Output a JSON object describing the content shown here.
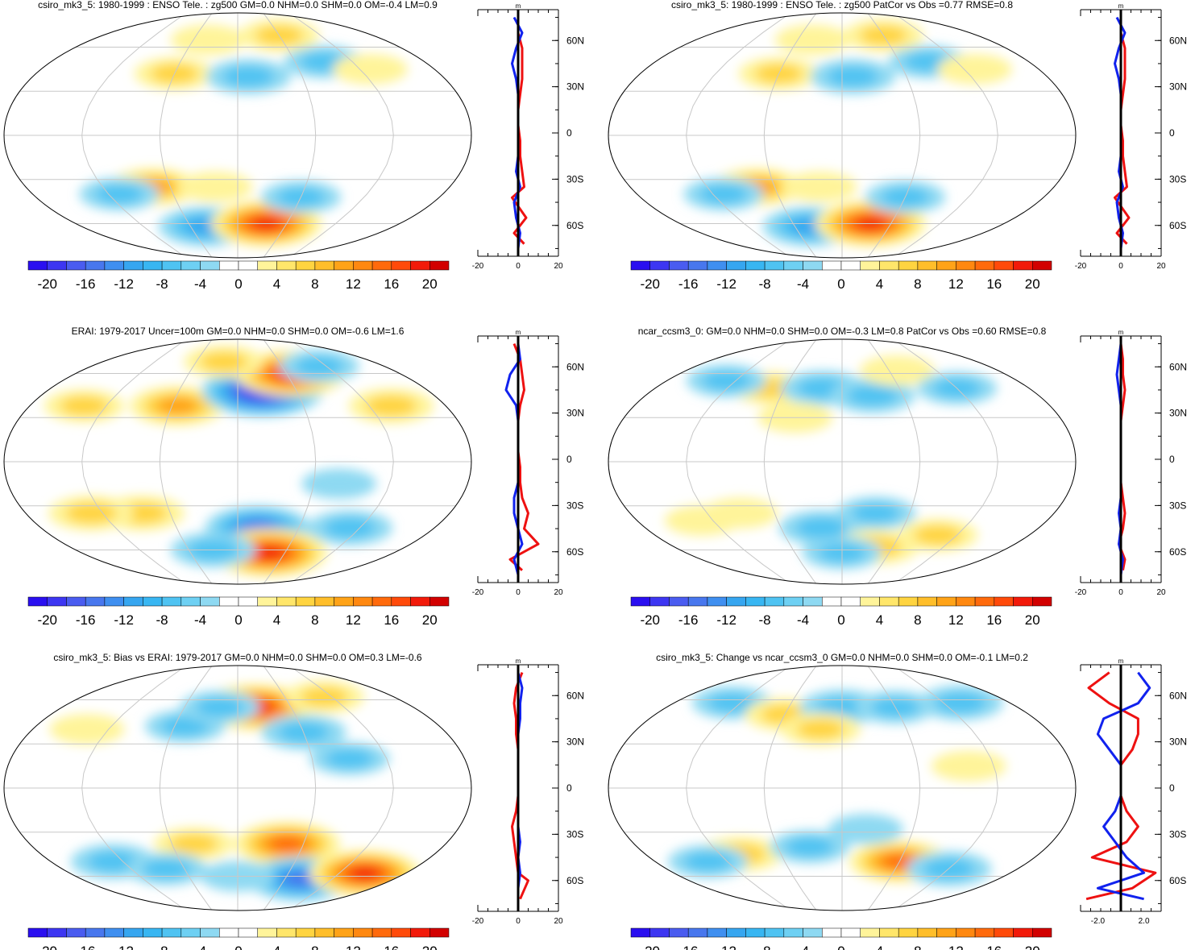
{
  "colorbar": {
    "levels": [
      -22,
      -20,
      -18,
      -16,
      -14,
      -12,
      -10,
      -8,
      -6,
      -4,
      -2,
      2,
      4,
      6,
      8,
      10,
      12,
      14,
      16,
      18,
      20,
      22
    ],
    "tick_labels": [
      "-20",
      "-16",
      "-12",
      "-8",
      "-4",
      "0",
      "4",
      "8",
      "12",
      "16",
      "20"
    ],
    "colors": [
      "#2a0ff0",
      "#3d36f2",
      "#4a5cf0",
      "#4877ee",
      "#3f8ff0",
      "#36a6f0",
      "#38b6f2",
      "#4fc3f2",
      "#6ed0f3",
      "#8ed9f2",
      "#ffffff",
      "#ffffff",
      "#fff49a",
      "#ffe66a",
      "#ffd440",
      "#ffbe2a",
      "#ffa318",
      "#ff8810",
      "#ff6a0c",
      "#ff4a0a",
      "#f21a0a",
      "#d20000"
    ]
  },
  "chart_data": [
    {
      "type": "map+zonal-profile",
      "title": "csiro_mk3_5: 1980-1999 : ENSO Tele. : zg500 GM=0.0 NHM=0.0 SHM=0.0 OM=-0.4 LM=0.9",
      "units": "m",
      "profile_xlim": [
        -20,
        20
      ],
      "profile_xticks": [
        "-20",
        "0",
        "20"
      ],
      "lat_ticks": [
        "60N",
        "30N",
        "0",
        "30S",
        "60S"
      ],
      "anomalies": [
        {
          "lon": -60,
          "lat": 42,
          "value": 6
        },
        {
          "lon": 10,
          "lat": 40,
          "value": -8
        },
        {
          "lon": 90,
          "lat": 50,
          "value": -6
        },
        {
          "lon": -75,
          "lat": -35,
          "value": 10
        },
        {
          "lon": -40,
          "lat": -62,
          "value": -12
        },
        {
          "lon": 35,
          "lat": -60,
          "value": 18
        },
        {
          "lon": 60,
          "lat": -42,
          "value": -6
        },
        {
          "lon": -110,
          "lat": -40,
          "value": -6
        },
        {
          "lon": -20,
          "lat": -35,
          "value": 4
        },
        {
          "lon": -40,
          "lat": 65,
          "value": 4
        },
        {
          "lon": 60,
          "lat": 68,
          "value": 6
        },
        {
          "lon": 130,
          "lat": 45,
          "value": 4
        }
      ],
      "zonal_mean_model": [
        [
          75,
          -2
        ],
        [
          65,
          2
        ],
        [
          55,
          -1
        ],
        [
          45,
          -3
        ],
        [
          35,
          -1
        ],
        [
          25,
          0
        ],
        [
          15,
          0
        ],
        [
          5,
          0
        ],
        [
          -5,
          0
        ],
        [
          -15,
          0
        ],
        [
          -25,
          -1
        ],
        [
          -35,
          1
        ],
        [
          -45,
          -2
        ],
        [
          -55,
          -1
        ],
        [
          -65,
          1
        ],
        [
          -75,
          0
        ]
      ],
      "zonal_mean_obs": [
        [
          75,
          0
        ],
        [
          65,
          0
        ],
        [
          55,
          2
        ],
        [
          45,
          2
        ],
        [
          35,
          2
        ],
        [
          25,
          1
        ],
        [
          15,
          0
        ],
        [
          5,
          0
        ],
        [
          -5,
          1
        ],
        [
          -15,
          1
        ],
        [
          -25,
          2
        ],
        [
          -35,
          3
        ],
        [
          -42,
          -3
        ],
        [
          -55,
          4
        ],
        [
          -65,
          -2
        ],
        [
          -72,
          3
        ]
      ]
    },
    {
      "type": "map+zonal-profile",
      "title": "csiro_mk3_5: 1980-1999 : ENSO Tele. : zg500 PatCor vs Obs =0.77 RMSE=0.8",
      "units": "m",
      "profile_xlim": [
        -20,
        20
      ],
      "profile_xticks": [
        "-20",
        "0",
        "20"
      ],
      "lat_ticks": [
        "60N",
        "30N",
        "0",
        "30S",
        "60S"
      ],
      "anomalies": [
        {
          "lon": -60,
          "lat": 42,
          "value": 6
        },
        {
          "lon": 10,
          "lat": 40,
          "value": -8
        },
        {
          "lon": 90,
          "lat": 50,
          "value": -6
        },
        {
          "lon": -75,
          "lat": -35,
          "value": 10
        },
        {
          "lon": -40,
          "lat": -62,
          "value": -12
        },
        {
          "lon": 35,
          "lat": -60,
          "value": 18
        },
        {
          "lon": 60,
          "lat": -42,
          "value": -6
        },
        {
          "lon": -110,
          "lat": -40,
          "value": -6
        },
        {
          "lon": -20,
          "lat": -35,
          "value": 4
        },
        {
          "lon": -40,
          "lat": 65,
          "value": 4
        },
        {
          "lon": 60,
          "lat": 68,
          "value": 6
        },
        {
          "lon": 130,
          "lat": 45,
          "value": 4
        }
      ],
      "zonal_mean_model": [
        [
          75,
          -2
        ],
        [
          65,
          2
        ],
        [
          55,
          -1
        ],
        [
          45,
          -3
        ],
        [
          35,
          -1
        ],
        [
          25,
          0
        ],
        [
          15,
          0
        ],
        [
          5,
          0
        ],
        [
          -5,
          0
        ],
        [
          -15,
          0
        ],
        [
          -25,
          -1
        ],
        [
          -35,
          1
        ],
        [
          -45,
          -2
        ],
        [
          -55,
          -1
        ],
        [
          -65,
          1
        ],
        [
          -75,
          0
        ]
      ],
      "zonal_mean_obs": [
        [
          75,
          0
        ],
        [
          65,
          0
        ],
        [
          55,
          2
        ],
        [
          45,
          2
        ],
        [
          35,
          2
        ],
        [
          25,
          1
        ],
        [
          15,
          0
        ],
        [
          5,
          0
        ],
        [
          -5,
          1
        ],
        [
          -15,
          1
        ],
        [
          -25,
          2
        ],
        [
          -35,
          3
        ],
        [
          -42,
          -3
        ],
        [
          -55,
          4
        ],
        [
          -65,
          -2
        ],
        [
          -72,
          3
        ]
      ]
    },
    {
      "type": "map+zonal-profile",
      "title": "ERAI: 1979-2017 Uncer=100m GM=0.0 NHM=0.0 SHM=0.0 OM=-0.6 LM=1.6",
      "units": "m",
      "profile_xlim": [
        -20,
        20
      ],
      "profile_xticks": [
        "-20",
        "0",
        "20"
      ],
      "lat_ticks": [
        "60N",
        "30N",
        "0",
        "30S",
        "60S"
      ],
      "anomalies": [
        {
          "lon": -55,
          "lat": 38,
          "value": 12
        },
        {
          "lon": 25,
          "lat": 48,
          "value": -22
        },
        {
          "lon": 65,
          "lat": 60,
          "value": 18
        },
        {
          "lon": -140,
          "lat": 38,
          "value": 6
        },
        {
          "lon": -85,
          "lat": -35,
          "value": 8
        },
        {
          "lon": -130,
          "lat": -35,
          "value": 8
        },
        {
          "lon": 20,
          "lat": -45,
          "value": -16
        },
        {
          "lon": 40,
          "lat": -62,
          "value": 20
        },
        {
          "lon": -30,
          "lat": -60,
          "value": -8
        },
        {
          "lon": 110,
          "lat": -45,
          "value": -8
        },
        {
          "lon": 80,
          "lat": -15,
          "value": -4
        },
        {
          "lon": -20,
          "lat": 68,
          "value": 6
        },
        {
          "lon": 140,
          "lat": 38,
          "value": 8
        },
        {
          "lon": 110,
          "lat": 65,
          "value": -6
        }
      ],
      "zonal_mean_model": [
        [
          75,
          0
        ],
        [
          65,
          1
        ],
        [
          55,
          -4
        ],
        [
          45,
          -6
        ],
        [
          35,
          -1
        ],
        [
          25,
          0
        ],
        [
          15,
          0
        ],
        [
          5,
          0
        ],
        [
          -5,
          0
        ],
        [
          -15,
          0
        ],
        [
          -25,
          -2
        ],
        [
          -35,
          -2
        ],
        [
          -45,
          0
        ],
        [
          -55,
          2
        ],
        [
          -65,
          -2
        ],
        [
          -75,
          0
        ]
      ],
      "zonal_mean_obs": [
        [
          75,
          -2
        ],
        [
          65,
          1
        ],
        [
          55,
          2
        ],
        [
          45,
          3
        ],
        [
          35,
          1
        ],
        [
          25,
          0
        ],
        [
          15,
          0
        ],
        [
          5,
          0
        ],
        [
          -5,
          1
        ],
        [
          -15,
          1
        ],
        [
          -25,
          2
        ],
        [
          -35,
          5
        ],
        [
          -45,
          3
        ],
        [
          -55,
          10
        ],
        [
          -65,
          -4
        ],
        [
          -72,
          2
        ]
      ]
    },
    {
      "type": "map+zonal-profile",
      "title": "ncar_ccsm3_0: GM=0.0 NHM=0.0 SHM=0.0 OM=-0.3 LM=0.8 PatCor vs Obs =0.60 RMSE=0.8",
      "units": "m",
      "profile_xlim": [
        -20,
        20
      ],
      "profile_xticks": [
        "-20",
        "0",
        "20"
      ],
      "lat_ticks": [
        "60N",
        "30N",
        "0",
        "30S",
        "60S"
      ],
      "anomalies": [
        {
          "lon": -75,
          "lat": 50,
          "value": 6
        },
        {
          "lon": -20,
          "lat": 50,
          "value": -8
        },
        {
          "lon": 30,
          "lat": 45,
          "value": -8
        },
        {
          "lon": -130,
          "lat": 55,
          "value": -6
        },
        {
          "lon": 70,
          "lat": 62,
          "value": 4
        },
        {
          "lon": 120,
          "lat": 50,
          "value": -6
        },
        {
          "lon": -90,
          "lat": -35,
          "value": 4
        },
        {
          "lon": -130,
          "lat": -40,
          "value": 4
        },
        {
          "lon": -20,
          "lat": -45,
          "value": -8
        },
        {
          "lon": 30,
          "lat": -35,
          "value": -6
        },
        {
          "lon": 40,
          "lat": -58,
          "value": 8
        },
        {
          "lon": 0,
          "lat": -62,
          "value": -6
        },
        {
          "lon": 100,
          "lat": -50,
          "value": 6
        },
        {
          "lon": -40,
          "lat": 30,
          "value": 4
        }
      ],
      "zonal_mean_model": [
        [
          75,
          0
        ],
        [
          65,
          -1
        ],
        [
          55,
          -2
        ],
        [
          45,
          -1
        ],
        [
          35,
          0
        ],
        [
          25,
          0
        ],
        [
          15,
          0
        ],
        [
          5,
          0
        ],
        [
          -5,
          0
        ],
        [
          -15,
          0
        ],
        [
          -25,
          0
        ],
        [
          -35,
          -1
        ],
        [
          -45,
          0
        ],
        [
          -55,
          -1
        ],
        [
          -65,
          1
        ],
        [
          -75,
          0
        ]
      ],
      "zonal_mean_obs": [
        [
          75,
          0
        ],
        [
          65,
          1
        ],
        [
          55,
          1
        ],
        [
          45,
          2
        ],
        [
          35,
          1
        ],
        [
          25,
          0
        ],
        [
          15,
          0
        ],
        [
          5,
          0
        ],
        [
          -5,
          0
        ],
        [
          -15,
          0
        ],
        [
          -25,
          1
        ],
        [
          -35,
          2
        ],
        [
          -45,
          1
        ],
        [
          -55,
          -1
        ],
        [
          -65,
          2
        ],
        [
          -72,
          1
        ]
      ]
    },
    {
      "type": "map+zonal-profile",
      "title": "csiro_mk3_5: Bias vs ERAI: 1979-2017 GM=0.0 NHM=0.0 SHM=0.0 OM=0.3 LM=-0.6",
      "units": "m",
      "profile_xlim": [
        -20,
        20
      ],
      "profile_xticks": [
        "-20",
        "0",
        "20"
      ],
      "lat_ticks": [
        "60N",
        "30N",
        "0",
        "30S",
        "60S"
      ],
      "anomalies": [
        {
          "lon": 20,
          "lat": 55,
          "value": 18
        },
        {
          "lon": -50,
          "lat": 42,
          "value": -6
        },
        {
          "lon": 60,
          "lat": 38,
          "value": -8
        },
        {
          "lon": -20,
          "lat": 55,
          "value": -6
        },
        {
          "lon": 110,
          "lat": 62,
          "value": 6
        },
        {
          "lon": 45,
          "lat": -38,
          "value": 16
        },
        {
          "lon": -40,
          "lat": -38,
          "value": 6
        },
        {
          "lon": 80,
          "lat": -62,
          "value": -16
        },
        {
          "lon": 150,
          "lat": -58,
          "value": 18
        },
        {
          "lon": -130,
          "lat": -50,
          "value": -8
        },
        {
          "lon": -80,
          "lat": -55,
          "value": -6
        },
        {
          "lon": 0,
          "lat": -60,
          "value": -4
        },
        {
          "lon": 90,
          "lat": 20,
          "value": -6
        },
        {
          "lon": -140,
          "lat": 40,
          "value": 4
        }
      ],
      "zonal_mean_model": [
        [
          75,
          0
        ],
        [
          65,
          2
        ],
        [
          55,
          1
        ],
        [
          45,
          1
        ],
        [
          35,
          0
        ],
        [
          25,
          0
        ],
        [
          15,
          0
        ],
        [
          5,
          0
        ],
        [
          -5,
          0
        ],
        [
          -15,
          0
        ],
        [
          -25,
          0
        ],
        [
          -35,
          1
        ],
        [
          -45,
          0
        ],
        [
          -55,
          1
        ],
        [
          -65,
          0
        ],
        [
          -75,
          0
        ]
      ],
      "zonal_mean_obs": [
        [
          75,
          2
        ],
        [
          65,
          -1
        ],
        [
          55,
          -2
        ],
        [
          45,
          -1
        ],
        [
          35,
          -1
        ],
        [
          25,
          0
        ],
        [
          15,
          0
        ],
        [
          5,
          0
        ],
        [
          -5,
          0
        ],
        [
          -15,
          -1
        ],
        [
          -25,
          -3
        ],
        [
          -35,
          -2
        ],
        [
          -45,
          -1
        ],
        [
          -55,
          0
        ],
        [
          -60,
          5
        ],
        [
          -72,
          1
        ]
      ]
    },
    {
      "type": "map+zonal-profile",
      "title": "csiro_mk3_5: Change vs ncar_ccsm3_0 GM=0.0 NHM=0.0 SHM=0.0 OM=-0.1 LM=0.2",
      "units": "m",
      "profile_xlim": [
        -3.5,
        3.5
      ],
      "profile_xticks": [
        "-2.0",
        "2.0"
      ],
      "lat_ticks": [
        "60N",
        "30N",
        "0",
        "30S",
        "60S"
      ],
      "anomalies": [
        {
          "lon": -130,
          "lat": 58,
          "value": -6
        },
        {
          "lon": -60,
          "lat": 50,
          "value": 6
        },
        {
          "lon": 0,
          "lat": 55,
          "value": -8
        },
        {
          "lon": 60,
          "lat": 55,
          "value": -6
        },
        {
          "lon": 140,
          "lat": 58,
          "value": -8
        },
        {
          "lon": -20,
          "lat": 40,
          "value": 6
        },
        {
          "lon": -100,
          "lat": -45,
          "value": 8
        },
        {
          "lon": -140,
          "lat": -50,
          "value": -6
        },
        {
          "lon": -30,
          "lat": -40,
          "value": -6
        },
        {
          "lon": 60,
          "lat": -50,
          "value": 14
        },
        {
          "lon": 120,
          "lat": -55,
          "value": -8
        },
        {
          "lon": 20,
          "lat": -28,
          "value": -4
        },
        {
          "lon": 100,
          "lat": 15,
          "value": 4
        }
      ],
      "zonal_mean_model": [
        [
          75,
          1.5
        ],
        [
          65,
          2.5
        ],
        [
          55,
          1.5
        ],
        [
          45,
          -1.5
        ],
        [
          35,
          -2
        ],
        [
          25,
          -1
        ],
        [
          15,
          0
        ],
        [
          5,
          0
        ],
        [
          -5,
          0
        ],
        [
          -15,
          -0.5
        ],
        [
          -25,
          -1.5
        ],
        [
          -35,
          -0.5
        ],
        [
          -45,
          0.5
        ],
        [
          -55,
          2
        ],
        [
          -65,
          -2
        ],
        [
          -72,
          2
        ]
      ],
      "zonal_mean_obs": [
        [
          75,
          -1
        ],
        [
          65,
          -2.8
        ],
        [
          55,
          -1
        ],
        [
          45,
          1.5
        ],
        [
          35,
          1.5
        ],
        [
          25,
          1
        ],
        [
          15,
          0
        ],
        [
          5,
          0
        ],
        [
          -5,
          0
        ],
        [
          -15,
          0.5
        ],
        [
          -25,
          1.5
        ],
        [
          -35,
          0.5
        ],
        [
          -45,
          -2.5
        ],
        [
          -55,
          3
        ],
        [
          -65,
          1
        ],
        [
          -72,
          -3
        ]
      ]
    }
  ]
}
